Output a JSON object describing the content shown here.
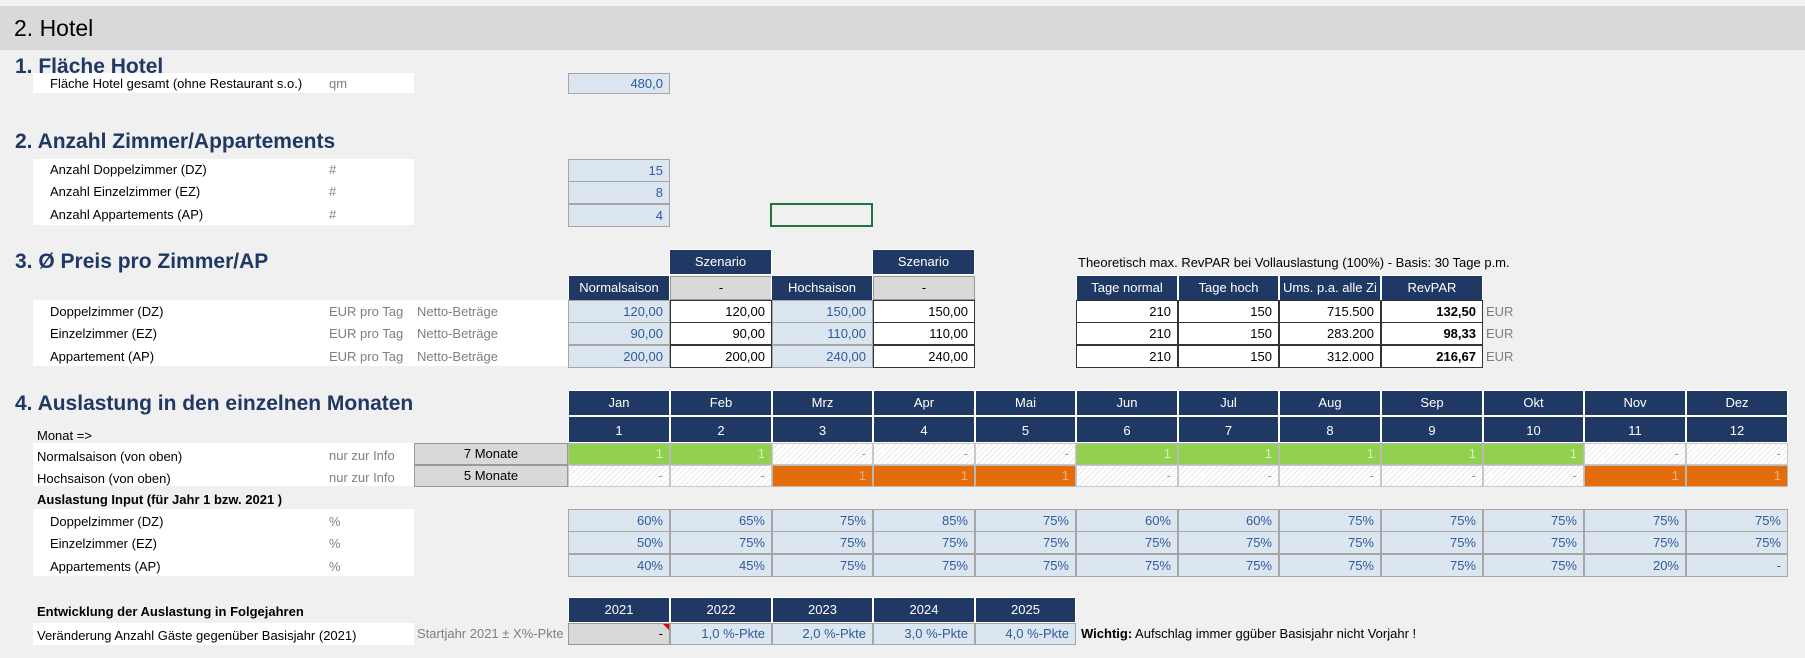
{
  "header": {
    "title": "2. Hotel"
  },
  "sec1": {
    "title": "1. Fläche Hotel",
    "row": {
      "label": "Fläche Hotel gesamt  (ohne Restaurant s.o.)",
      "unit": "qm",
      "value": "480,0"
    }
  },
  "sec2": {
    "title": "2. Anzahl Zimmer/Appartements",
    "rows": [
      {
        "label": "Anzahl Doppelzimmer (DZ)",
        "unit": "#",
        "value": "15"
      },
      {
        "label": "Anzahl Einzelzimmer (EZ)",
        "unit": "#",
        "value": "8"
      },
      {
        "label": "Anzahl Appartements (AP)",
        "unit": "#",
        "value": "4"
      }
    ]
  },
  "sec3": {
    "title": "3. Ø Preis pro Zimmer/AP",
    "scenario1": "Szenario",
    "scenario2": "Szenario",
    "normal": "Normalsaison",
    "hoch": "Hochsaison",
    "dash1": "-",
    "dash2": "-",
    "rows": [
      {
        "label": "Doppelzimmer (DZ)",
        "unit": "EUR pro Tag",
        "note": "Netto-Beträge",
        "n_in": "120,00",
        "n_out": "120,00",
        "h_in": "150,00",
        "h_out": "150,00"
      },
      {
        "label": "Einzelzimmer (EZ)",
        "unit": "EUR pro Tag",
        "note": "Netto-Beträge",
        "n_in": "90,00",
        "n_out": "90,00",
        "h_in": "110,00",
        "h_out": "110,00"
      },
      {
        "label": "Appartement (AP)",
        "unit": "EUR pro Tag",
        "note": "Netto-Beträge",
        "n_in": "200,00",
        "n_out": "200,00",
        "h_in": "240,00",
        "h_out": "240,00"
      }
    ],
    "revpar": {
      "caption": "Theoretisch max. RevPAR bei Vollauslastung (100%) - Basis: 30 Tage p.m.",
      "headers": [
        "Tage normal",
        "Tage hoch",
        "Ums. p.a. alle Zi",
        "RevPAR"
      ],
      "rows": [
        {
          "tn": "210",
          "th": "150",
          "ums": "715.500",
          "rev": "132,50",
          "unit": "EUR"
        },
        {
          "tn": "210",
          "th": "150",
          "ums": "283.200",
          "rev": "98,33",
          "unit": "EUR"
        },
        {
          "tn": "210",
          "th": "150",
          "ums": "312.000",
          "rev": "216,67",
          "unit": "EUR"
        }
      ]
    }
  },
  "sec4": {
    "title": "4. Auslastung in den einzelnen Monaten",
    "months": [
      "Jan",
      "Feb",
      "Mrz",
      "Apr",
      "Mai",
      "Jun",
      "Jul",
      "Aug",
      "Sep",
      "Okt",
      "Nov",
      "Dez"
    ],
    "monat_label": "Monat =>",
    "month_nums": [
      "1",
      "2",
      "3",
      "4",
      "5",
      "6",
      "7",
      "8",
      "9",
      "10",
      "11",
      "12"
    ],
    "normal_row": {
      "label": "Normalsaison (von oben)",
      "note": "nur zur Info",
      "summary": "7 Monate",
      "cells": [
        "1",
        "1",
        "-",
        "-",
        "-",
        "1",
        "1",
        "1",
        "1",
        "1",
        "-",
        "-"
      ]
    },
    "hoch_row": {
      "label": "Hochsaison (von oben)",
      "note": "nur zur Info",
      "summary": "5 Monate",
      "cells": [
        "-",
        "-",
        "1",
        "1",
        "1",
        "-",
        "-",
        "-",
        "-",
        "-",
        "1",
        "1"
      ]
    },
    "input_title": "Auslastung Input (für Jahr 1 bzw. 2021 )",
    "input_rows": [
      {
        "label": "Doppelzimmer (DZ)",
        "unit": "%",
        "values": [
          "60%",
          "65%",
          "75%",
          "85%",
          "75%",
          "60%",
          "60%",
          "75%",
          "75%",
          "75%",
          "75%",
          "75%"
        ]
      },
      {
        "label": "Einzelzimmer (EZ)",
        "unit": "%",
        "values": [
          "50%",
          "75%",
          "75%",
          "75%",
          "75%",
          "75%",
          "75%",
          "75%",
          "75%",
          "75%",
          "75%",
          "75%"
        ]
      },
      {
        "label": "Appartements (AP)",
        "unit": "%",
        "values": [
          "40%",
          "45%",
          "75%",
          "75%",
          "75%",
          "75%",
          "75%",
          "75%",
          "75%",
          "75%",
          "20%",
          "-"
        ]
      }
    ],
    "dev": {
      "title": "Entwicklung der Auslastung in Folgejahren",
      "years": [
        "2021",
        "2022",
        "2023",
        "2024",
        "2025"
      ],
      "label": "Veränderung Anzahl Gäste gegenüber Basisjahr (2021)",
      "note": "Startjahr 2021 ± X%-Pkte",
      "values": [
        "-",
        "1,0 %-Pkte",
        "2,0 %-Pkte",
        "3,0 %-Pkte",
        "4,0 %-Pkte"
      ],
      "warn_bold": "Wichtig:",
      "warn_text": " Aufschlag immer ggüber Basisjahr nicht Vorjahr !"
    }
  }
}
